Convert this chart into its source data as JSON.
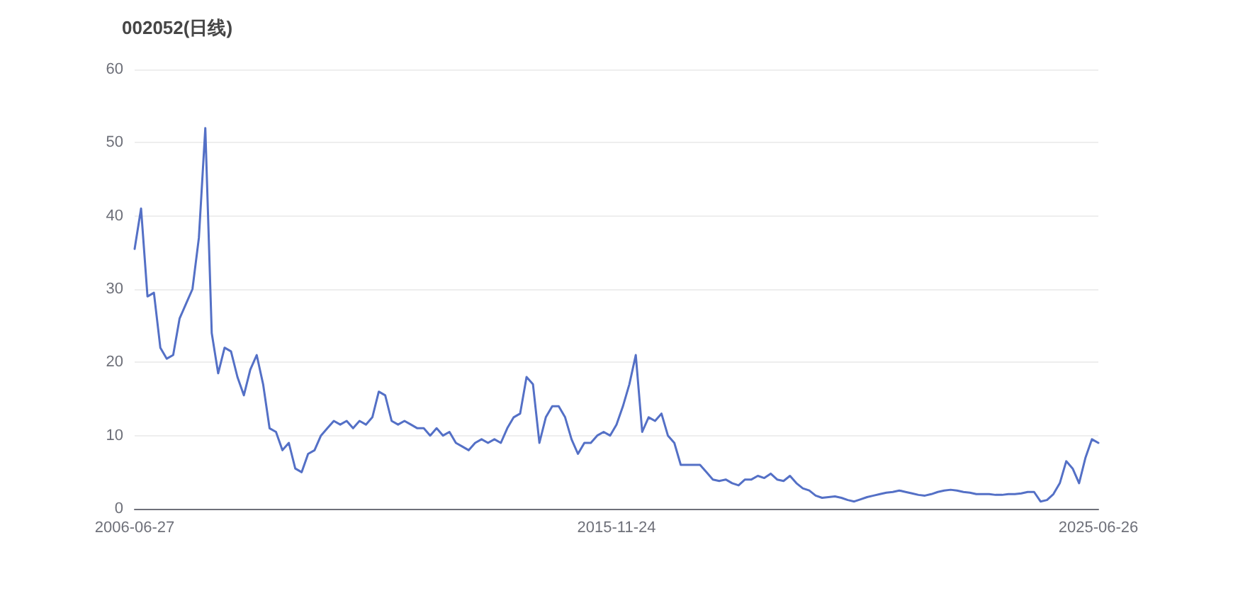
{
  "chart_data": {
    "type": "line",
    "title": "002052(日线)",
    "categories": [
      "2006-06-27",
      null,
      null,
      null,
      null,
      null,
      null,
      null,
      null,
      null,
      null,
      null,
      null,
      null,
      null,
      null,
      null,
      null,
      null,
      null,
      null,
      null,
      null,
      null,
      null,
      null,
      null,
      null,
      null,
      null,
      null,
      null,
      null,
      null,
      null,
      null,
      null,
      null,
      null,
      null,
      null,
      null,
      null,
      null,
      null,
      null,
      null,
      null,
      null,
      null,
      null,
      null,
      null,
      null,
      null,
      null,
      null,
      null,
      null,
      null,
      null,
      null,
      null,
      null,
      null,
      null,
      null,
      null,
      null,
      null,
      null,
      null,
      null,
      null,
      null,
      "2015-11-24",
      null,
      null,
      null,
      null,
      null,
      null,
      null,
      null,
      null,
      null,
      null,
      null,
      null,
      null,
      null,
      null,
      null,
      null,
      null,
      null,
      null,
      null,
      null,
      null,
      null,
      null,
      null,
      null,
      null,
      null,
      null,
      null,
      null,
      null,
      null,
      null,
      null,
      null,
      null,
      null,
      null,
      null,
      null,
      null,
      null,
      null,
      null,
      null,
      null,
      null,
      null,
      null,
      null,
      null,
      null,
      null,
      null,
      null,
      null,
      null,
      null,
      null,
      null,
      null,
      null,
      null,
      null,
      null,
      null,
      null,
      null,
      null,
      null,
      null,
      "2025-06-26"
    ],
    "series": [
      {
        "color": "#5470c6",
        "values": [
          35.5,
          41,
          29,
          29.5,
          22,
          20.5,
          21,
          26,
          28,
          30,
          37,
          52,
          24,
          18.5,
          22,
          21.5,
          18,
          15.5,
          19,
          21,
          17,
          11,
          10.5,
          8,
          9,
          5.5,
          5,
          7.5,
          8,
          10,
          11,
          12,
          11.5,
          12,
          11,
          12,
          11.5,
          12.5,
          16,
          15.5,
          12,
          11.5,
          12,
          11.5,
          11,
          11,
          10,
          11,
          10,
          10.5,
          9,
          8.5,
          8,
          9,
          9.5,
          9,
          9.5,
          9,
          11,
          12.5,
          13,
          18,
          17,
          9,
          12.5,
          14,
          14,
          12.5,
          9.5,
          7.5,
          9,
          9,
          10,
          10.5,
          10,
          11.5,
          14,
          17,
          21,
          10.5,
          12.5,
          12,
          13,
          10,
          9,
          6,
          6,
          6,
          6,
          5,
          4,
          3.8,
          4,
          3.5,
          3.2,
          4,
          4,
          4.5,
          4.2,
          4.8,
          4,
          3.8,
          4.5,
          3.5,
          2.8,
          2.5,
          1.8,
          1.5,
          1.6,
          1.7,
          1.5,
          1.2,
          1,
          1.3,
          1.6,
          1.8,
          2,
          2.2,
          2.3,
          2.5,
          2.3,
          2.1,
          1.9,
          1.8,
          2,
          2.3,
          2.5,
          2.6,
          2.5,
          2.3,
          2.2,
          2,
          2,
          2,
          1.9,
          1.9,
          2,
          2,
          2.1,
          2.3,
          2.3,
          1,
          1.2,
          2,
          3.5,
          6.5,
          5.5,
          3.5,
          7,
          9.5,
          9
        ]
      }
    ],
    "ylim": [
      0,
      60
    ],
    "yticks": [
      0,
      10,
      20,
      30,
      40,
      50,
      60
    ],
    "grid": "y",
    "marker": "none",
    "line_style": "solid"
  }
}
